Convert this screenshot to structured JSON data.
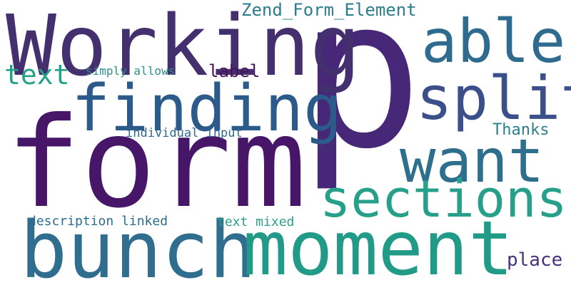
{
  "words": {
    "p": {
      "text": "p",
      "color": "#472777"
    },
    "form": {
      "text": "form",
      "color": "#471669"
    },
    "working": {
      "text": "Working",
      "color": "#44306f"
    },
    "bunch": {
      "text": "bunch",
      "color": "#2f6e8e"
    },
    "moment": {
      "text": "moment",
      "color": "#229a88"
    },
    "finding": {
      "text": "finding",
      "color": "#2b5a8b"
    },
    "able": {
      "text": "able",
      "color": "#2f6b8e"
    },
    "split": {
      "text": "split",
      "color": "#3b4f8a"
    },
    "want": {
      "text": "want",
      "color": "#2e6f8e"
    },
    "sections": {
      "text": "sections",
      "color": "#27a08b"
    },
    "text": {
      "text": "text",
      "color": "#24a287"
    },
    "zend_form_element": {
      "text": "Zend_Form_Element",
      "color": "#2c7c8e"
    },
    "simply_allows": {
      "text": "simply allows",
      "color": "#2a8f8c"
    },
    "label": {
      "text": "label",
      "color": "#4a1159"
    },
    "thanks": {
      "text": "Thanks",
      "color": "#2c7f8e"
    },
    "individual_input": {
      "text": "individual input",
      "color": "#2f6b8e"
    },
    "description_linked": {
      "text": "description linked",
      "color": "#2a6d8e"
    },
    "text_mixed": {
      "text": "text mixed",
      "color": "#2aa08b"
    },
    "place": {
      "text": "place",
      "color": "#46327e"
    }
  }
}
